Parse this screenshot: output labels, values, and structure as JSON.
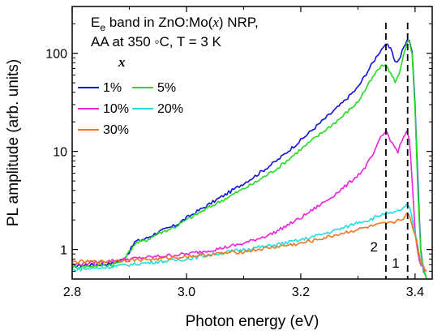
{
  "chart_data": {
    "type": "line",
    "xlabel": "Photon energy (eV)",
    "ylabel": "PL amplitude (arb. units)",
    "xlim": [
      2.8,
      3.43
    ],
    "ylim": [
      0.5,
      300
    ],
    "yscale": "log",
    "xticks": [
      "2.8",
      "3.0",
      "3.2",
      "3.4"
    ],
    "xtick_values": [
      2.8,
      3.0,
      3.2,
      3.4
    ],
    "yticks": [
      "1",
      "10",
      "100"
    ],
    "ytick_values": [
      1,
      10,
      100
    ],
    "annotation": {
      "prefix": "E",
      "subscript": "e",
      "rest": " band in ZnO:Mo(",
      "var": "x",
      "end": ") NRP,",
      "line2": "AA at 350 ◦C, T = 3 K",
      "legend_title": "x"
    },
    "vlines": [
      {
        "x": 3.349,
        "label": "2"
      },
      {
        "x": 3.387,
        "label": "1"
      }
    ],
    "series": [
      {
        "name": "1%",
        "color": "#1111dd",
        "x": [
          2.8,
          2.84,
          2.87,
          2.89,
          2.9,
          2.91,
          2.93,
          2.95,
          2.98,
          3.0,
          3.04,
          3.08,
          3.12,
          3.16,
          3.2,
          3.24,
          3.27,
          3.3,
          3.32,
          3.335,
          3.345,
          3.352,
          3.36,
          3.365,
          3.372,
          3.38,
          3.386,
          3.39,
          3.395,
          3.4,
          3.405,
          3.41,
          3.415,
          3.42
        ],
        "y": [
          0.68,
          0.7,
          0.72,
          0.8,
          0.95,
          1.2,
          1.3,
          1.5,
          1.75,
          2.1,
          2.9,
          4.0,
          5.6,
          8.2,
          13,
          21,
          30,
          45,
          70,
          98,
          118,
          120,
          104,
          82,
          85,
          115,
          133,
          138,
          100,
          30,
          5,
          1.0,
          0.6,
          0.5
        ]
      },
      {
        "name": "5%",
        "color": "#22dd22",
        "x": [
          2.8,
          2.84,
          2.87,
          2.89,
          2.9,
          2.91,
          2.93,
          2.95,
          2.98,
          3.0,
          3.04,
          3.08,
          3.12,
          3.16,
          3.2,
          3.24,
          3.27,
          3.3,
          3.32,
          3.335,
          3.345,
          3.352,
          3.36,
          3.365,
          3.372,
          3.38,
          3.386,
          3.39,
          3.395,
          3.4,
          3.405,
          3.41,
          3.415,
          3.42
        ],
        "y": [
          0.66,
          0.68,
          0.7,
          0.78,
          0.95,
          1.15,
          1.25,
          1.45,
          1.7,
          2.0,
          2.7,
          3.6,
          4.8,
          6.8,
          10.5,
          16,
          22,
          32,
          50,
          68,
          76,
          72,
          58,
          52,
          60,
          100,
          128,
          130,
          95,
          25,
          4,
          0.9,
          0.6,
          0.5
        ]
      },
      {
        "name": "10%",
        "color": "#ee22dd",
        "x": [
          2.8,
          2.85,
          2.9,
          2.95,
          3.0,
          3.05,
          3.1,
          3.15,
          3.2,
          3.25,
          3.28,
          3.31,
          3.33,
          3.34,
          3.35,
          3.36,
          3.37,
          3.38,
          3.385,
          3.39,
          3.395,
          3.4,
          3.405,
          3.41,
          3.42
        ],
        "y": [
          0.7,
          0.75,
          0.8,
          0.85,
          0.9,
          1.0,
          1.15,
          1.45,
          2.1,
          3.3,
          4.5,
          6.5,
          10,
          14,
          16,
          12,
          10,
          14,
          16,
          13,
          5,
          1.5,
          0.9,
          0.7,
          0.6
        ]
      },
      {
        "name": "20%",
        "color": "#22dddd",
        "x": [
          2.8,
          2.85,
          2.9,
          2.95,
          3.0,
          3.05,
          3.1,
          3.15,
          3.2,
          3.25,
          3.28,
          3.3,
          3.32,
          3.34,
          3.35,
          3.36,
          3.37,
          3.38,
          3.385,
          3.39,
          3.4,
          3.41,
          3.42
        ],
        "y": [
          0.62,
          0.65,
          0.7,
          0.75,
          0.8,
          0.9,
          1.0,
          1.1,
          1.25,
          1.5,
          1.7,
          1.9,
          2.0,
          2.25,
          2.35,
          2.3,
          2.45,
          2.65,
          2.8,
          2.7,
          1.5,
          0.75,
          0.6
        ]
      },
      {
        "name": "30%",
        "color": "#ee7722",
        "x": [
          2.8,
          2.85,
          2.9,
          2.95,
          3.0,
          3.05,
          3.1,
          3.15,
          3.2,
          3.25,
          3.28,
          3.3,
          3.32,
          3.34,
          3.35,
          3.36,
          3.37,
          3.38,
          3.385,
          3.39,
          3.4,
          3.41,
          3.42
        ],
        "y": [
          0.75,
          0.75,
          0.78,
          0.8,
          0.85,
          0.9,
          0.95,
          1.05,
          1.15,
          1.35,
          1.5,
          1.6,
          1.7,
          1.8,
          1.85,
          1.85,
          2.0,
          2.1,
          2.25,
          2.2,
          1.4,
          0.75,
          0.6
        ]
      }
    ]
  }
}
